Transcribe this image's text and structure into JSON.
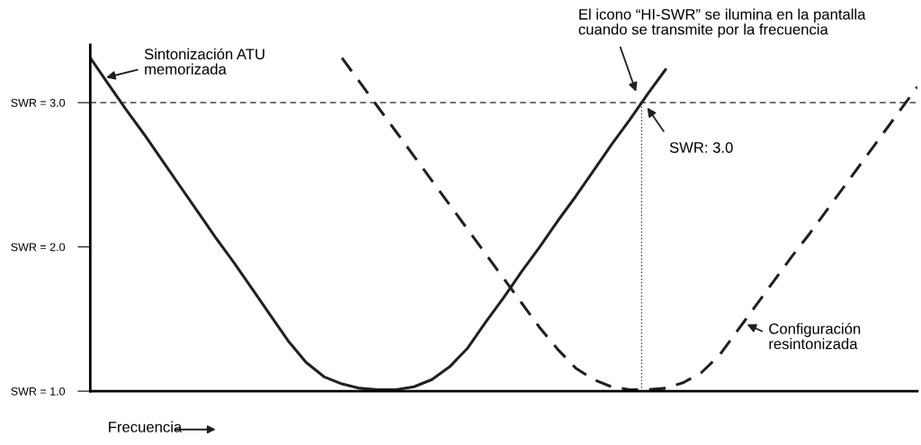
{
  "chart_data": {
    "type": "line",
    "categories": [
      null,
      null,
      null,
      null,
      null,
      null,
      null,
      null,
      null,
      null,
      null,
      null,
      null,
      null,
      null,
      null,
      null,
      null,
      null,
      null,
      null,
      null,
      null,
      null,
      null,
      null,
      null,
      null,
      null,
      null,
      null,
      null,
      null,
      null,
      null,
      null,
      null,
      null,
      null,
      null,
      null,
      null,
      null,
      null,
      null,
      null,
      null
    ],
    "series": [
      {
        "color": "#231f20",
        "line_style": "solid",
        "values": [
          3.31,
          3.13,
          2.95,
          2.78,
          2.6,
          2.42,
          2.24,
          2.06,
          1.89,
          1.71,
          1.53,
          1.35,
          1.2,
          1.1,
          1.05,
          1.02,
          1.01,
          1.01,
          1.03,
          1.08,
          1.17,
          1.3,
          1.48,
          1.65,
          1.83,
          2.0,
          2.18,
          2.35,
          2.53,
          2.71,
          2.88,
          3.06,
          3.23,
          null,
          null,
          null,
          null,
          null,
          null,
          null,
          null,
          null,
          null,
          null,
          null,
          null,
          null
        ]
      },
      {
        "color": "#231f20",
        "line_style": "dashed",
        "values": [
          null,
          null,
          null,
          null,
          null,
          null,
          null,
          null,
          null,
          null,
          null,
          null,
          null,
          null,
          3.31,
          3.14,
          2.97,
          2.8,
          2.63,
          2.46,
          2.29,
          2.12,
          1.95,
          1.78,
          1.61,
          1.44,
          1.29,
          1.16,
          1.08,
          1.03,
          1.01,
          1.01,
          1.02,
          1.06,
          1.13,
          1.25,
          1.42,
          1.59,
          1.76,
          1.93,
          2.09,
          2.26,
          2.43,
          2.6,
          2.77,
          2.94,
          3.11
        ]
      }
    ],
    "ylim": [
      1.0,
      3.4
    ],
    "yticks": [
      {
        "value": 1.0,
        "label": "SWR = 1.0"
      },
      {
        "value": 2.0,
        "label": "SWR = 2.0"
      },
      {
        "value": 3.0,
        "label": "SWR = 3.0"
      }
    ],
    "xlabel": "Frecuencia",
    "tick_labels": "y",
    "grid": false,
    "ref_lines": [
      {
        "axis": "y",
        "value": 3.0,
        "line_style": "dashed",
        "color": "#231f20"
      }
    ],
    "annotations": [
      "Sintonización ATU\nmemorizada",
      "El icono “HI-SWR” se ilumina en la pantalla\ncuando se transmite por la frecuencia",
      "SWR: 3.0",
      "Configuración\nresintonizada"
    ]
  }
}
